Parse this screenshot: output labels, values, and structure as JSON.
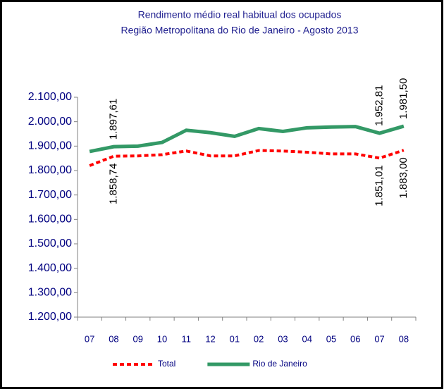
{
  "chart_data": {
    "type": "line",
    "title": "Rendimento médio real habitual dos ocupados",
    "subtitle": "Região Metropolitana do Rio de Janeiro - Agosto 2013",
    "categories": [
      "07",
      "08",
      "09",
      "10",
      "11",
      "12",
      "01",
      "02",
      "03",
      "04",
      "05",
      "06",
      "07",
      "08"
    ],
    "series": [
      {
        "name": "Total",
        "color": "#ff0000",
        "dashed": true,
        "values": [
          1820,
          1858.74,
          1860,
          1865,
          1880,
          1860,
          1860,
          1882,
          1880,
          1875,
          1868,
          1868,
          1851.01,
          1883.0
        ],
        "value_labels": [
          null,
          "1.858,74",
          null,
          null,
          null,
          null,
          null,
          null,
          null,
          null,
          null,
          null,
          "1.851,01",
          "1.883,00"
        ]
      },
      {
        "name": "Rio de Janeiro",
        "color": "#339966",
        "dashed": false,
        "values": [
          1878,
          1897.61,
          1900,
          1915,
          1965,
          1955,
          1940,
          1972,
          1960,
          1975,
          1978,
          1980,
          1952.81,
          1981.5
        ],
        "value_labels": [
          null,
          "1.897,61",
          null,
          null,
          null,
          null,
          null,
          null,
          null,
          null,
          null,
          null,
          "1.952,81",
          "1.981,50"
        ]
      }
    ],
    "ylim": [
      1200,
      2100
    ],
    "yticks": [
      {
        "value": 1200,
        "label": "1.200,00"
      },
      {
        "value": 1300,
        "label": "1.300,00"
      },
      {
        "value": 1400,
        "label": "1.400,00"
      },
      {
        "value": 1500,
        "label": "1.500,00"
      },
      {
        "value": 1600,
        "label": "1.600,00"
      },
      {
        "value": 1700,
        "label": "1.700,00"
      },
      {
        "value": 1800,
        "label": "1.800,00"
      },
      {
        "value": 1900,
        "label": "1.900,00"
      },
      {
        "value": 2000,
        "label": "2.000,00"
      },
      {
        "value": 2100,
        "label": "2.100,00"
      }
    ],
    "grid": false,
    "legend": "bottom"
  }
}
